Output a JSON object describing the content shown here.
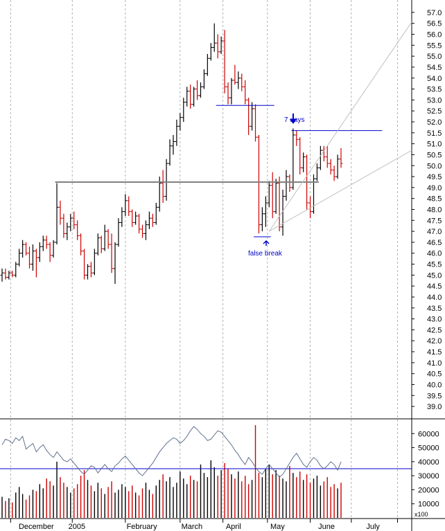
{
  "chart_data": [
    {
      "type": "ohlc",
      "title": "",
      "ylim": [
        38.75,
        57.25
      ],
      "y_ticks": [
        "57.0",
        "56.5",
        "56.0",
        "55.5",
        "55.0",
        "54.5",
        "54.0",
        "53.5",
        "53.0",
        "52.5",
        "52.0",
        "51.5",
        "51.0",
        "50.5",
        "50.0",
        "49.5",
        "49.0",
        "48.5",
        "48.0",
        "47.5",
        "47.0",
        "46.5",
        "46.0",
        "45.5",
        "45.0",
        "44.5",
        "44.0",
        "43.5",
        "43.0",
        "42.5",
        "42.0",
        "41.5",
        "41.0",
        "40.5",
        "40.0",
        "39.5",
        "39.0"
      ],
      "x_labels": [
        "December",
        "2005",
        "February",
        "March",
        "April",
        "May",
        "June",
        "July"
      ],
      "grid": true,
      "colors": {
        "up": "#000000",
        "down": "#cc0000",
        "annotation": "#0000cc",
        "support": "#808080",
        "trend": "#c0c0c0"
      },
      "bars": [
        {
          "o": 45.0,
          "h": 45.3,
          "l": 44.7,
          "c": 45.1
        },
        {
          "o": 45.1,
          "h": 45.3,
          "l": 44.8,
          "c": 44.9
        },
        {
          "o": 44.9,
          "h": 45.2,
          "l": 44.8,
          "c": 45.1
        },
        {
          "o": 45.1,
          "h": 45.2,
          "l": 44.9,
          "c": 45.0
        },
        {
          "o": 45.0,
          "h": 45.6,
          "l": 44.9,
          "c": 45.5
        },
        {
          "o": 45.5,
          "h": 46.2,
          "l": 45.4,
          "c": 46.0
        },
        {
          "o": 46.0,
          "h": 46.6,
          "l": 45.8,
          "c": 46.4
        },
        {
          "o": 46.4,
          "h": 46.5,
          "l": 45.9,
          "c": 46.0
        },
        {
          "o": 46.0,
          "h": 46.3,
          "l": 45.3,
          "c": 45.5
        },
        {
          "o": 45.5,
          "h": 46.4,
          "l": 45.2,
          "c": 46.1
        },
        {
          "o": 46.1,
          "h": 46.2,
          "l": 44.9,
          "c": 45.8
        },
        {
          "o": 45.8,
          "h": 46.5,
          "l": 45.6,
          "c": 46.3
        },
        {
          "o": 46.3,
          "h": 46.8,
          "l": 46.1,
          "c": 46.6
        },
        {
          "o": 46.6,
          "h": 46.8,
          "l": 46.2,
          "c": 46.4
        },
        {
          "o": 46.4,
          "h": 46.5,
          "l": 45.6,
          "c": 45.9
        },
        {
          "o": 45.9,
          "h": 46.6,
          "l": 45.8,
          "c": 46.5
        },
        {
          "o": 46.5,
          "h": 49.2,
          "l": 46.4,
          "c": 48.1
        },
        {
          "o": 48.1,
          "h": 48.4,
          "l": 47.3,
          "c": 47.6
        },
        {
          "o": 47.6,
          "h": 47.8,
          "l": 46.7,
          "c": 46.9
        },
        {
          "o": 46.9,
          "h": 47.4,
          "l": 46.6,
          "c": 47.2
        },
        {
          "o": 47.2,
          "h": 47.8,
          "l": 47.0,
          "c": 47.6
        },
        {
          "o": 47.6,
          "h": 47.9,
          "l": 47.1,
          "c": 47.3
        },
        {
          "o": 47.3,
          "h": 47.5,
          "l": 46.6,
          "c": 46.8
        },
        {
          "o": 46.8,
          "h": 46.9,
          "l": 45.9,
          "c": 46.1
        },
        {
          "o": 46.1,
          "h": 46.2,
          "l": 44.8,
          "c": 45.0
        },
        {
          "o": 45.0,
          "h": 45.5,
          "l": 44.8,
          "c": 45.4
        },
        {
          "o": 45.4,
          "h": 45.6,
          "l": 44.9,
          "c": 45.1
        },
        {
          "o": 45.1,
          "h": 46.2,
          "l": 45.0,
          "c": 46.0
        },
        {
          "o": 46.0,
          "h": 46.9,
          "l": 45.9,
          "c": 46.7
        },
        {
          "o": 46.7,
          "h": 46.8,
          "l": 46.0,
          "c": 46.2
        },
        {
          "o": 46.2,
          "h": 47.3,
          "l": 46.1,
          "c": 47.0
        },
        {
          "o": 47.0,
          "h": 47.1,
          "l": 46.2,
          "c": 46.4
        },
        {
          "o": 46.4,
          "h": 46.9,
          "l": 45.1,
          "c": 45.3
        },
        {
          "o": 45.3,
          "h": 46.5,
          "l": 44.6,
          "c": 46.4
        },
        {
          "o": 46.4,
          "h": 47.6,
          "l": 46.3,
          "c": 47.4
        },
        {
          "o": 47.4,
          "h": 48.1,
          "l": 47.2,
          "c": 47.9
        },
        {
          "o": 47.9,
          "h": 48.7,
          "l": 47.7,
          "c": 48.4
        },
        {
          "o": 48.4,
          "h": 48.6,
          "l": 47.7,
          "c": 47.9
        },
        {
          "o": 47.9,
          "h": 48.0,
          "l": 47.2,
          "c": 47.4
        },
        {
          "o": 47.4,
          "h": 47.9,
          "l": 47.3,
          "c": 47.7
        },
        {
          "o": 47.7,
          "h": 47.8,
          "l": 46.9,
          "c": 47.1
        },
        {
          "o": 47.1,
          "h": 47.3,
          "l": 46.7,
          "c": 46.9
        },
        {
          "o": 46.9,
          "h": 47.5,
          "l": 46.6,
          "c": 47.3
        },
        {
          "o": 47.3,
          "h": 47.9,
          "l": 47.1,
          "c": 47.6
        },
        {
          "o": 47.6,
          "h": 47.8,
          "l": 47.2,
          "c": 47.4
        },
        {
          "o": 47.4,
          "h": 48.3,
          "l": 47.3,
          "c": 48.1
        },
        {
          "o": 48.1,
          "h": 49.5,
          "l": 47.9,
          "c": 49.2
        },
        {
          "o": 49.2,
          "h": 49.8,
          "l": 48.3,
          "c": 48.6
        },
        {
          "o": 48.6,
          "h": 50.3,
          "l": 48.4,
          "c": 50.1
        },
        {
          "o": 50.1,
          "h": 51.2,
          "l": 50.0,
          "c": 50.9
        },
        {
          "o": 50.9,
          "h": 51.4,
          "l": 50.5,
          "c": 51.1
        },
        {
          "o": 51.1,
          "h": 52.1,
          "l": 50.9,
          "c": 51.8
        },
        {
          "o": 51.8,
          "h": 52.4,
          "l": 51.6,
          "c": 52.2
        },
        {
          "o": 52.2,
          "h": 53.1,
          "l": 52.0,
          "c": 52.9
        },
        {
          "o": 52.9,
          "h": 53.6,
          "l": 52.7,
          "c": 53.4
        },
        {
          "o": 53.4,
          "h": 53.7,
          "l": 52.6,
          "c": 52.8
        },
        {
          "o": 52.8,
          "h": 53.6,
          "l": 52.7,
          "c": 53.5
        },
        {
          "o": 53.5,
          "h": 53.9,
          "l": 53.0,
          "c": 53.2
        },
        {
          "o": 53.2,
          "h": 53.8,
          "l": 53.1,
          "c": 53.6
        },
        {
          "o": 53.6,
          "h": 54.4,
          "l": 53.5,
          "c": 54.2
        },
        {
          "o": 54.2,
          "h": 55.1,
          "l": 54.1,
          "c": 54.9
        },
        {
          "o": 54.9,
          "h": 55.6,
          "l": 54.8,
          "c": 55.4
        },
        {
          "o": 55.4,
          "h": 56.5,
          "l": 55.2,
          "c": 55.6
        },
        {
          "o": 55.6,
          "h": 56.0,
          "l": 54.9,
          "c": 55.2
        },
        {
          "o": 55.2,
          "h": 55.9,
          "l": 55.1,
          "c": 55.7
        },
        {
          "o": 55.7,
          "h": 56.2,
          "l": 53.3,
          "c": 53.6
        },
        {
          "o": 53.6,
          "h": 53.8,
          "l": 52.8,
          "c": 53.1
        },
        {
          "o": 53.1,
          "h": 54.0,
          "l": 52.8,
          "c": 53.9
        },
        {
          "o": 53.9,
          "h": 54.6,
          "l": 53.7,
          "c": 53.8
        },
        {
          "o": 53.8,
          "h": 54.3,
          "l": 53.5,
          "c": 54.0
        },
        {
          "o": 54.0,
          "h": 54.2,
          "l": 53.4,
          "c": 53.6
        },
        {
          "o": 53.6,
          "h": 53.9,
          "l": 52.8,
          "c": 53.0
        },
        {
          "o": 53.0,
          "h": 53.1,
          "l": 51.4,
          "c": 51.8
        },
        {
          "o": 51.8,
          "h": 52.9,
          "l": 51.6,
          "c": 52.6
        },
        {
          "o": 52.6,
          "h": 52.8,
          "l": 51.1,
          "c": 51.3
        },
        {
          "o": 51.3,
          "h": 51.4,
          "l": 46.9,
          "c": 47.3
        },
        {
          "o": 47.3,
          "h": 48.1,
          "l": 47.0,
          "c": 47.8
        },
        {
          "o": 47.8,
          "h": 48.6,
          "l": 47.2,
          "c": 48.3
        },
        {
          "o": 48.3,
          "h": 49.3,
          "l": 48.1,
          "c": 49.1
        },
        {
          "o": 49.1,
          "h": 49.7,
          "l": 47.6,
          "c": 47.9
        },
        {
          "o": 47.9,
          "h": 49.4,
          "l": 47.8,
          "c": 49.2
        },
        {
          "o": 49.2,
          "h": 49.5,
          "l": 47.0,
          "c": 47.2
        },
        {
          "o": 47.2,
          "h": 48.9,
          "l": 46.8,
          "c": 48.6
        },
        {
          "o": 48.6,
          "h": 49.8,
          "l": 48.4,
          "c": 49.5
        },
        {
          "o": 49.5,
          "h": 49.6,
          "l": 48.8,
          "c": 49.0
        },
        {
          "o": 49.0,
          "h": 51.7,
          "l": 48.9,
          "c": 51.4
        },
        {
          "o": 51.4,
          "h": 51.6,
          "l": 50.9,
          "c": 51.2
        },
        {
          "o": 51.2,
          "h": 51.3,
          "l": 49.6,
          "c": 49.9
        },
        {
          "o": 49.9,
          "h": 50.6,
          "l": 49.7,
          "c": 50.4
        },
        {
          "o": 50.4,
          "h": 50.5,
          "l": 48.0,
          "c": 48.3
        },
        {
          "o": 48.3,
          "h": 48.6,
          "l": 47.6,
          "c": 47.9
        },
        {
          "o": 47.9,
          "h": 49.6,
          "l": 47.8,
          "c": 49.4
        },
        {
          "o": 49.4,
          "h": 50.1,
          "l": 49.3,
          "c": 49.9
        },
        {
          "o": 49.9,
          "h": 50.9,
          "l": 49.8,
          "c": 50.7
        },
        {
          "o": 50.7,
          "h": 50.9,
          "l": 50.2,
          "c": 50.4
        },
        {
          "o": 50.4,
          "h": 50.9,
          "l": 49.9,
          "c": 50.1
        },
        {
          "o": 50.1,
          "h": 50.3,
          "l": 49.6,
          "c": 49.8
        },
        {
          "o": 49.8,
          "h": 50.0,
          "l": 49.3,
          "c": 49.5
        },
        {
          "o": 49.5,
          "h": 50.5,
          "l": 49.4,
          "c": 50.3
        },
        {
          "o": 50.3,
          "h": 50.8,
          "l": 49.9,
          "c": 50.1
        }
      ],
      "levels": {
        "neckline": 49.25,
        "top_line": 52.75,
        "resistance": 51.6,
        "false_break_low": 46.75
      },
      "trendlines": [
        {
          "from": [
            78,
            47.0
          ],
          "to": [
            105,
            53.2
          ]
        },
        {
          "from": [
            78,
            47.0
          ],
          "to": [
            105,
            49.4
          ]
        }
      ],
      "annotations": {
        "seven_days": "7 days",
        "false_break": "false break"
      }
    },
    {
      "type": "bar",
      "volume_unit": "x100",
      "ylim": [
        0,
        70000
      ],
      "y_ticks": [
        "60000",
        "50000",
        "40000",
        "30000",
        "20000",
        "10000"
      ],
      "horizontal_line": 35000,
      "volumes": [
        15000,
        12000,
        14000,
        11000,
        18000,
        22000,
        17000,
        13000,
        16000,
        20000,
        19000,
        24000,
        21000,
        28000,
        26000,
        23000,
        40000,
        29000,
        25000,
        22000,
        18000,
        21000,
        24000,
        30000,
        34000,
        27000,
        23000,
        19000,
        25000,
        21000,
        17000,
        22000,
        26000,
        18000,
        20000,
        24000,
        22000,
        19000,
        23000,
        18000,
        16000,
        21000,
        25000,
        20000,
        17000,
        23000,
        27000,
        31000,
        26000,
        29000,
        22000,
        25000,
        33000,
        28000,
        24000,
        30000,
        27000,
        26000,
        38000,
        32000,
        29000,
        41000,
        36000,
        30000,
        34000,
        39000,
        35000,
        31000,
        28000,
        33000,
        26000,
        30000,
        24000,
        27000,
        66000,
        32000,
        29000,
        35000,
        38000,
        31000,
        34000,
        30000,
        28000,
        26000,
        37000,
        32000,
        29000,
        33000,
        27000,
        31000,
        25000,
        28000,
        30000,
        23000,
        26000,
        29000,
        22000,
        24000,
        21000,
        25000
      ],
      "moving_average": [
        52000,
        56000,
        55000,
        53000,
        57000,
        55000,
        58000,
        49000,
        51000,
        53000,
        47000,
        50000,
        52000,
        48000,
        45000,
        43000,
        47000,
        44000,
        41000,
        40000,
        42000,
        39000,
        36000,
        33000,
        31000,
        34000,
        37000,
        36000,
        32000,
        35000,
        38000,
        35000,
        33000,
        37000,
        39000,
        42000,
        44000,
        41000,
        38000,
        35000,
        32000,
        30000,
        33000,
        36000,
        39000,
        43000,
        47000,
        50000,
        53000,
        55000,
        57000,
        56000,
        53000,
        55000,
        58000,
        62000,
        65000,
        63000,
        60000,
        58000,
        55000,
        56000,
        59000,
        62000,
        61000,
        58000,
        55000,
        52000,
        48000,
        45000,
        41000,
        38000,
        43000,
        40000,
        36000,
        33000,
        31000,
        35000,
        38000,
        35000,
        32000,
        29000,
        31000,
        35000,
        39000,
        43000,
        46000,
        42000,
        38000,
        36000,
        40000,
        43000,
        41000,
        37000,
        35000,
        37000,
        40000,
        38000,
        34000,
        40000
      ]
    }
  ],
  "volume_ticks_extra": "x100"
}
